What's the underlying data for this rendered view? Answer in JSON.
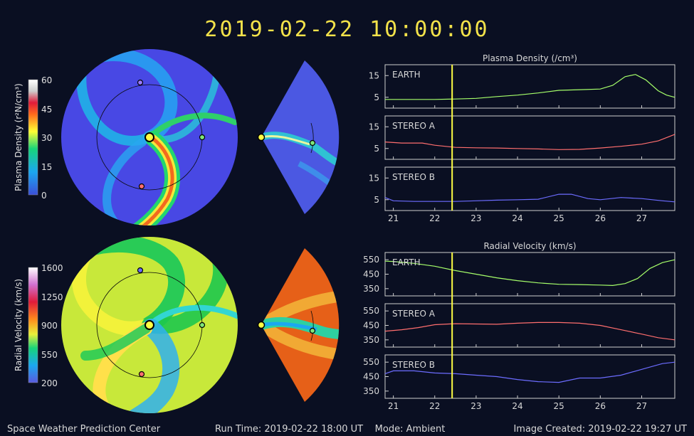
{
  "title": "2019-02-22 10:00:00",
  "colors": {
    "background": "#0a0f22",
    "title": "#f3e24a",
    "earth": "#a6ff6a",
    "stereo_a": "#ff6e6e",
    "stereo_b": "#6c6cff",
    "time_marker": "#ffff44"
  },
  "density_colorbar": {
    "label": "Plasma Density (r²N/cm³)",
    "ticks": [
      "60",
      "45",
      "30",
      "15",
      "0"
    ]
  },
  "velocity_colorbar": {
    "label": "Radial Velocity (km/s)",
    "ticks": [
      "1600",
      "1250",
      "900",
      "550",
      "200"
    ]
  },
  "footer": {
    "center": "Space Weather Prediction Center",
    "run_time": "Run Time: 2019-02-22 18:00 UT    Mode: Ambient",
    "created": "Image Created: 2019-02-22 19:27 UT"
  },
  "chart_data": [
    {
      "type": "line",
      "title": "Plasma Density (/cm³)",
      "x_tick_labels": [
        "21",
        "22",
        "23",
        "24",
        "25",
        "26",
        "27"
      ],
      "xlim": [
        20.8,
        27.8
      ],
      "time_marker_x": 22.42,
      "panels": [
        {
          "name": "EARTH",
          "color": "#a6ff6a",
          "y_ticks": [
            5,
            15
          ],
          "ylim": [
            0,
            20
          ],
          "x": [
            20.8,
            21.5,
            22.0,
            22.5,
            23.0,
            23.5,
            24.0,
            24.5,
            25.0,
            25.5,
            26.0,
            26.3,
            26.6,
            26.85,
            27.1,
            27.4,
            27.6,
            27.8
          ],
          "values": [
            4,
            4,
            4,
            4.2,
            4.5,
            5.3,
            6,
            7,
            8.2,
            8.5,
            8.8,
            10.5,
            14.5,
            15.5,
            13,
            8,
            6,
            5
          ]
        },
        {
          "name": "STEREO A",
          "color": "#ff6e6e",
          "y_ticks": [
            5,
            15
          ],
          "ylim": [
            0,
            20
          ],
          "x": [
            20.8,
            21.2,
            21.7,
            22.0,
            22.5,
            23.0,
            23.5,
            24.0,
            24.5,
            25.0,
            25.5,
            26.0,
            26.5,
            27.0,
            27.4,
            27.8
          ],
          "values": [
            8,
            7.5,
            7.5,
            6.5,
            5.5,
            5.3,
            5.2,
            5,
            4.8,
            4.5,
            4.6,
            5.2,
            6,
            7,
            8.5,
            11.5
          ]
        },
        {
          "name": "STEREO B",
          "color": "#6c6cff",
          "y_ticks": [
            5,
            15
          ],
          "ylim": [
            0,
            20
          ],
          "x": [
            20.8,
            21.0,
            21.5,
            22.0,
            22.5,
            23.0,
            23.5,
            24.0,
            24.5,
            25.0,
            25.3,
            25.7,
            26.0,
            26.5,
            27.0,
            27.5,
            27.8
          ],
          "values": [
            6,
            4.5,
            4.2,
            4.2,
            4.2,
            4.5,
            4.8,
            5,
            5.2,
            7.5,
            7.5,
            5.5,
            5,
            6,
            5.5,
            4.5,
            4
          ]
        }
      ]
    },
    {
      "type": "line",
      "title": "Radial Velocity (km/s)",
      "x_tick_labels": [
        "21",
        "22",
        "23",
        "24",
        "25",
        "26",
        "27"
      ],
      "xlim": [
        20.8,
        27.8
      ],
      "time_marker_x": 22.42,
      "panels": [
        {
          "name": "EARTH",
          "color": "#a6ff6a",
          "y_ticks": [
            350,
            450,
            550
          ],
          "ylim": [
            300,
            600
          ],
          "x": [
            20.8,
            21.0,
            21.5,
            22.0,
            22.5,
            23.0,
            23.5,
            24.0,
            24.5,
            25.0,
            25.5,
            26.0,
            26.3,
            26.6,
            26.9,
            27.2,
            27.5,
            27.8
          ],
          "values": [
            540,
            538,
            525,
            505,
            475,
            450,
            425,
            405,
            390,
            380,
            378,
            375,
            372,
            385,
            420,
            490,
            530,
            550
          ]
        },
        {
          "name": "STEREO A",
          "color": "#ff6e6e",
          "y_ticks": [
            350,
            450,
            550
          ],
          "ylim": [
            300,
            600
          ],
          "x": [
            20.8,
            21.2,
            21.6,
            22.0,
            22.5,
            23.0,
            23.5,
            24.0,
            24.5,
            25.0,
            25.5,
            26.0,
            26.5,
            27.0,
            27.4,
            27.8
          ],
          "values": [
            410,
            420,
            435,
            455,
            462,
            460,
            458,
            465,
            470,
            470,
            465,
            450,
            420,
            390,
            365,
            350
          ]
        },
        {
          "name": "STEREO B",
          "color": "#6c6cff",
          "y_ticks": [
            350,
            450,
            550
          ],
          "ylim": [
            300,
            600
          ],
          "x": [
            20.8,
            21.0,
            21.5,
            22.0,
            22.5,
            23.0,
            23.5,
            24.0,
            24.5,
            25.0,
            25.5,
            26.0,
            26.5,
            27.0,
            27.5,
            27.8
          ],
          "values": [
            470,
            490,
            490,
            475,
            470,
            460,
            450,
            430,
            415,
            410,
            440,
            440,
            460,
            500,
            540,
            550
          ]
        }
      ]
    }
  ]
}
